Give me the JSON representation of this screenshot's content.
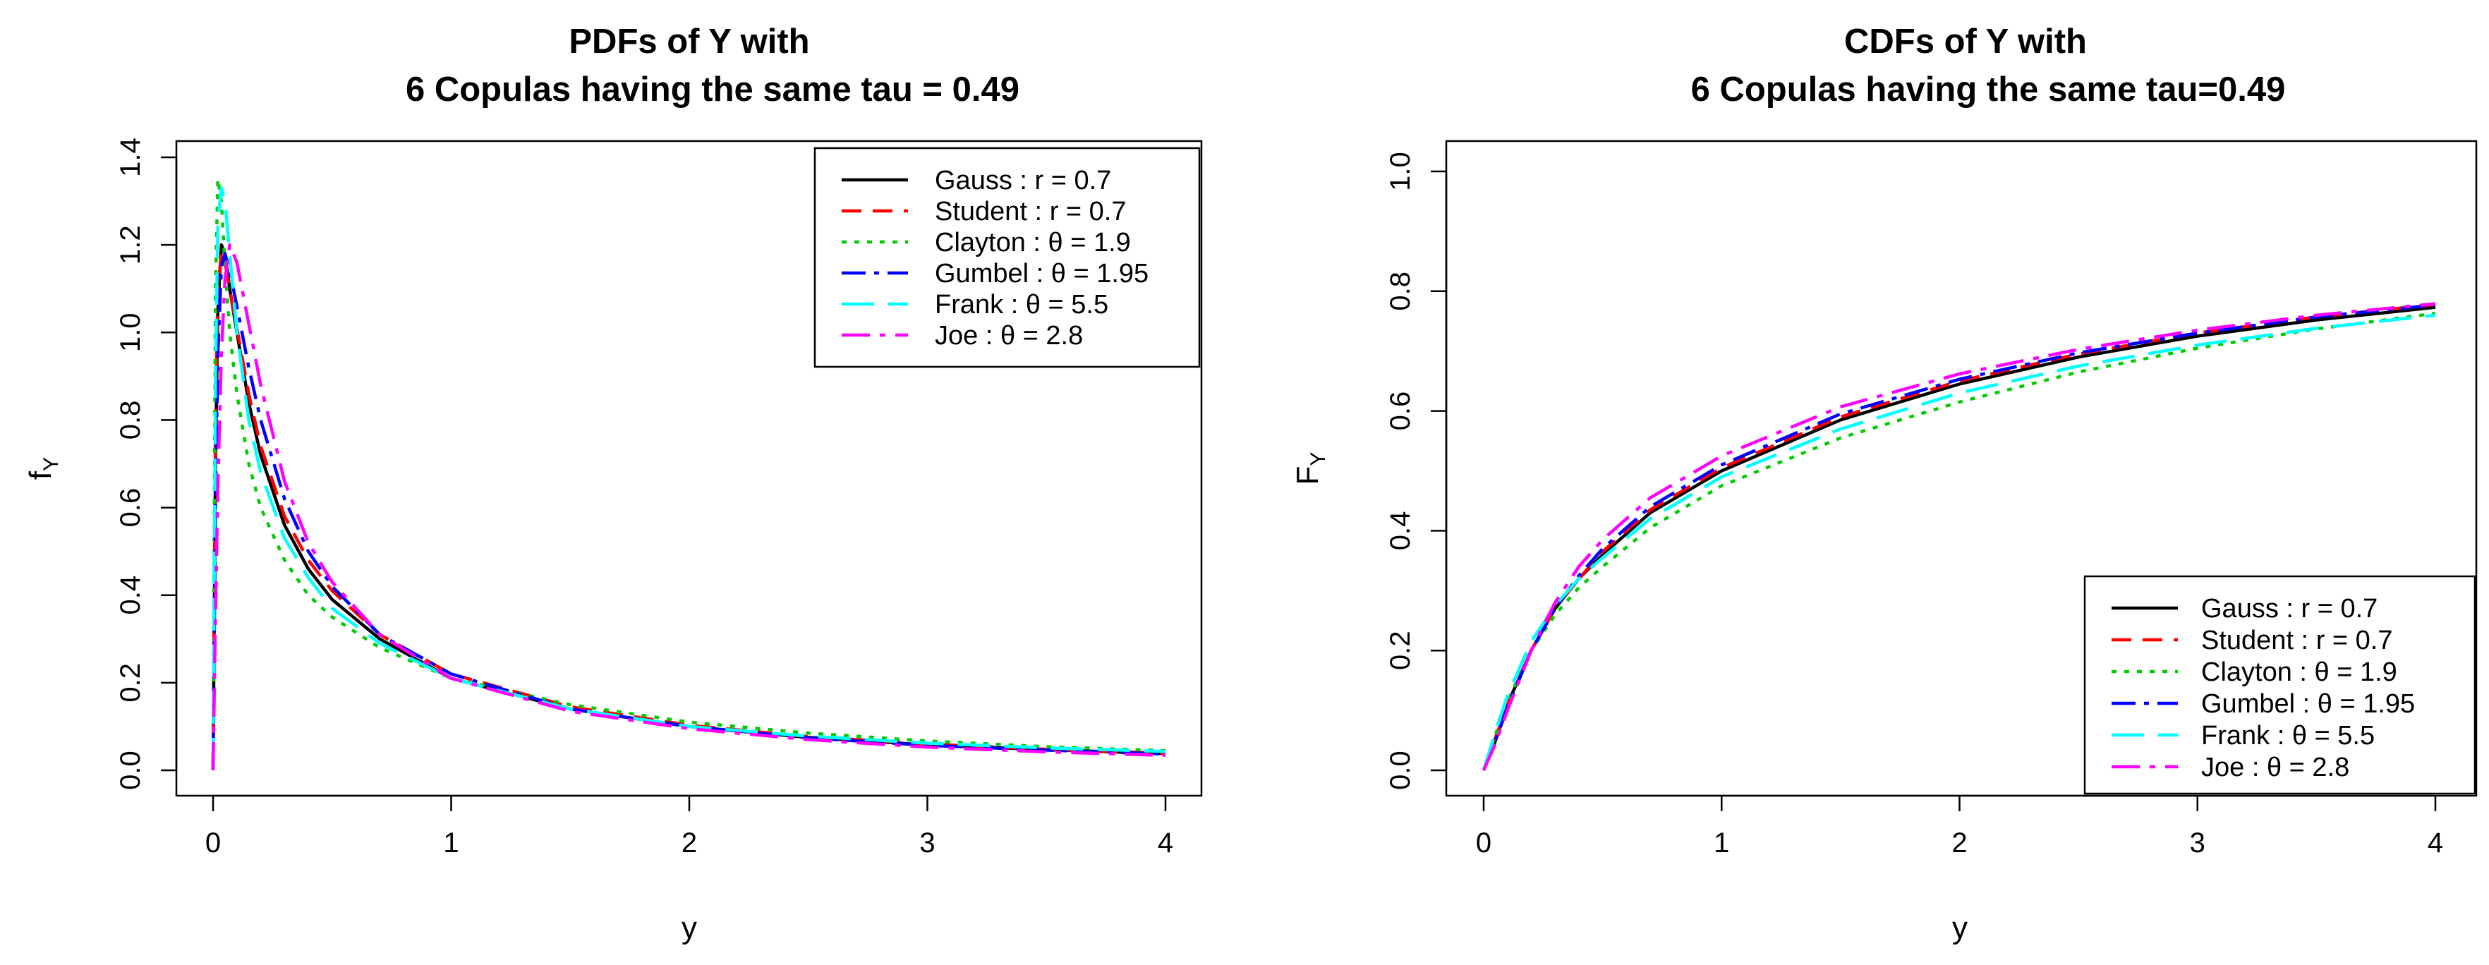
{
  "chart_data": [
    {
      "type": "line",
      "title_line1": "PDFs of Y with",
      "title_line2": "6 Copulas having the same tau = 0.49",
      "xlabel": "y",
      "ylabel_main": "f",
      "ylabel_sub": "Y",
      "xlim": [
        0,
        4
      ],
      "ylim": [
        0,
        1.4
      ],
      "xticks": [
        "0",
        "1",
        "2",
        "3",
        "4"
      ],
      "yticks": [
        "0.0",
        "0.2",
        "0.4",
        "0.6",
        "0.8",
        "1.0",
        "1.2",
        "1.4"
      ],
      "grid": false,
      "legend_position": "top-right",
      "series": [
        {
          "name": "Gauss",
          "param_text": "r = 0.7",
          "color": "#000000",
          "x": [
            0,
            0.01,
            0.02,
            0.035,
            0.05,
            0.07,
            0.1,
            0.15,
            0.2,
            0.3,
            0.4,
            0.5,
            0.7,
            1.0,
            1.5,
            2.0,
            2.5,
            3.0,
            3.5,
            4.0
          ],
          "y": [
            0,
            0.7,
            1.05,
            1.2,
            1.18,
            1.1,
            1.0,
            0.84,
            0.72,
            0.56,
            0.46,
            0.39,
            0.3,
            0.21,
            0.14,
            0.1,
            0.075,
            0.058,
            0.047,
            0.038
          ]
        },
        {
          "name": "Student",
          "param_text": "r = 0.7",
          "color": "#ff0000",
          "x": [
            0,
            0.01,
            0.02,
            0.035,
            0.05,
            0.07,
            0.1,
            0.15,
            0.2,
            0.3,
            0.4,
            0.5,
            0.7,
            1.0,
            1.5,
            2.0,
            2.5,
            3.0,
            3.5,
            4.0
          ],
          "y": [
            0,
            0.8,
            1.1,
            1.18,
            1.16,
            1.1,
            1.01,
            0.86,
            0.74,
            0.58,
            0.48,
            0.41,
            0.31,
            0.22,
            0.145,
            0.103,
            0.077,
            0.06,
            0.048,
            0.039
          ]
        },
        {
          "name": "Clayton",
          "param_text": "θ = 1.9",
          "color": "#00cc00",
          "x": [
            0,
            0.01,
            0.02,
            0.035,
            0.05,
            0.07,
            0.1,
            0.15,
            0.2,
            0.3,
            0.4,
            0.5,
            0.7,
            1.0,
            1.5,
            2.0,
            2.5,
            3.0,
            3.5,
            4.0
          ],
          "y": [
            0,
            1.1,
            1.35,
            1.3,
            1.15,
            1.0,
            0.86,
            0.7,
            0.6,
            0.48,
            0.4,
            0.35,
            0.28,
            0.21,
            0.15,
            0.11,
            0.085,
            0.067,
            0.054,
            0.045
          ]
        },
        {
          "name": "Gumbel",
          "param_text": "θ = 1.95",
          "color": "#0000ff",
          "x": [
            0,
            0.01,
            0.02,
            0.035,
            0.05,
            0.07,
            0.1,
            0.15,
            0.2,
            0.3,
            0.4,
            0.5,
            0.7,
            1.0,
            1.5,
            2.0,
            2.5,
            3.0,
            3.5,
            4.0
          ],
          "y": [
            0,
            0.6,
            0.95,
            1.15,
            1.18,
            1.14,
            1.06,
            0.92,
            0.8,
            0.62,
            0.5,
            0.42,
            0.31,
            0.22,
            0.14,
            0.1,
            0.074,
            0.057,
            0.046,
            0.037
          ]
        },
        {
          "name": "Frank",
          "param_text": "θ = 5.5",
          "color": "#00ffff",
          "x": [
            0,
            0.01,
            0.02,
            0.035,
            0.05,
            0.07,
            0.1,
            0.15,
            0.2,
            0.3,
            0.4,
            0.5,
            0.7,
            1.0,
            1.5,
            2.0,
            2.5,
            3.0,
            3.5,
            4.0
          ],
          "y": [
            0,
            0.9,
            1.25,
            1.33,
            1.3,
            1.18,
            1.0,
            0.8,
            0.68,
            0.53,
            0.44,
            0.37,
            0.29,
            0.21,
            0.14,
            0.1,
            0.078,
            0.062,
            0.051,
            0.043
          ]
        },
        {
          "name": "Joe",
          "param_text": "θ = 2.8",
          "color": "#ff00ff",
          "x": [
            0,
            0.01,
            0.02,
            0.035,
            0.05,
            0.07,
            0.1,
            0.15,
            0.2,
            0.3,
            0.4,
            0.5,
            0.7,
            1.0,
            1.5,
            2.0,
            2.5,
            3.0,
            3.5,
            4.0
          ],
          "y": [
            0,
            0.35,
            0.65,
            0.95,
            1.12,
            1.2,
            1.16,
            1.02,
            0.88,
            0.66,
            0.52,
            0.43,
            0.31,
            0.21,
            0.135,
            0.095,
            0.07,
            0.053,
            0.042,
            0.034
          ]
        }
      ]
    },
    {
      "type": "line",
      "title_line1": "CDFs of Y with",
      "title_line2": "6 Copulas having the same tau=0.49",
      "xlabel": "y",
      "ylabel_main": "F",
      "ylabel_sub": "Y",
      "xlim": [
        0,
        4
      ],
      "ylim": [
        0,
        1.0
      ],
      "xticks": [
        "0",
        "1",
        "2",
        "3",
        "4"
      ],
      "yticks": [
        "0.0",
        "0.2",
        "0.4",
        "0.6",
        "0.8",
        "1.0"
      ],
      "grid": false,
      "legend_position": "bottom-right",
      "series": [
        {
          "name": "Gauss",
          "param_text": "r = 0.7",
          "color": "#000000",
          "x": [
            0,
            0.05,
            0.1,
            0.2,
            0.3,
            0.4,
            0.5,
            0.7,
            1.0,
            1.5,
            2.0,
            2.5,
            3.0,
            3.5,
            4.0
          ],
          "y": [
            0,
            0.05,
            0.11,
            0.2,
            0.27,
            0.32,
            0.36,
            0.43,
            0.5,
            0.585,
            0.645,
            0.69,
            0.725,
            0.752,
            0.773
          ]
        },
        {
          "name": "Student",
          "param_text": "r = 0.7",
          "color": "#ff0000",
          "x": [
            0,
            0.05,
            0.1,
            0.2,
            0.3,
            0.4,
            0.5,
            0.7,
            1.0,
            1.5,
            2.0,
            2.5,
            3.0,
            3.5,
            4.0
          ],
          "y": [
            0,
            0.055,
            0.11,
            0.2,
            0.27,
            0.32,
            0.365,
            0.435,
            0.505,
            0.59,
            0.65,
            0.695,
            0.73,
            0.757,
            0.778
          ]
        },
        {
          "name": "Clayton",
          "param_text": "θ = 1.9",
          "color": "#00cc00",
          "x": [
            0,
            0.05,
            0.1,
            0.2,
            0.3,
            0.4,
            0.5,
            0.7,
            1.0,
            1.5,
            2.0,
            2.5,
            3.0,
            3.5,
            4.0
          ],
          "y": [
            0,
            0.06,
            0.115,
            0.2,
            0.26,
            0.305,
            0.34,
            0.405,
            0.475,
            0.555,
            0.615,
            0.665,
            0.705,
            0.737,
            0.763
          ]
        },
        {
          "name": "Gumbel",
          "param_text": "θ = 1.95",
          "color": "#0000ff",
          "x": [
            0,
            0.05,
            0.1,
            0.2,
            0.3,
            0.4,
            0.5,
            0.7,
            1.0,
            1.5,
            2.0,
            2.5,
            3.0,
            3.5,
            4.0
          ],
          "y": [
            0,
            0.05,
            0.105,
            0.2,
            0.27,
            0.325,
            0.37,
            0.44,
            0.51,
            0.595,
            0.653,
            0.697,
            0.73,
            0.757,
            0.777
          ]
        },
        {
          "name": "Frank",
          "param_text": "θ = 5.5",
          "color": "#00ffff",
          "x": [
            0,
            0.05,
            0.1,
            0.2,
            0.3,
            0.4,
            0.5,
            0.7,
            1.0,
            1.5,
            2.0,
            2.5,
            3.0,
            3.5,
            4.0
          ],
          "y": [
            0,
            0.065,
            0.125,
            0.215,
            0.275,
            0.32,
            0.355,
            0.42,
            0.49,
            0.57,
            0.63,
            0.675,
            0.71,
            0.738,
            0.76
          ]
        },
        {
          "name": "Joe",
          "param_text": "θ = 2.8",
          "color": "#ff00ff",
          "x": [
            0,
            0.05,
            0.1,
            0.2,
            0.3,
            0.4,
            0.5,
            0.7,
            1.0,
            1.5,
            2.0,
            2.5,
            3.0,
            3.5,
            4.0
          ],
          "y": [
            0,
            0.045,
            0.1,
            0.2,
            0.28,
            0.34,
            0.385,
            0.455,
            0.525,
            0.607,
            0.662,
            0.703,
            0.735,
            0.76,
            0.779
          ]
        }
      ]
    }
  ]
}
